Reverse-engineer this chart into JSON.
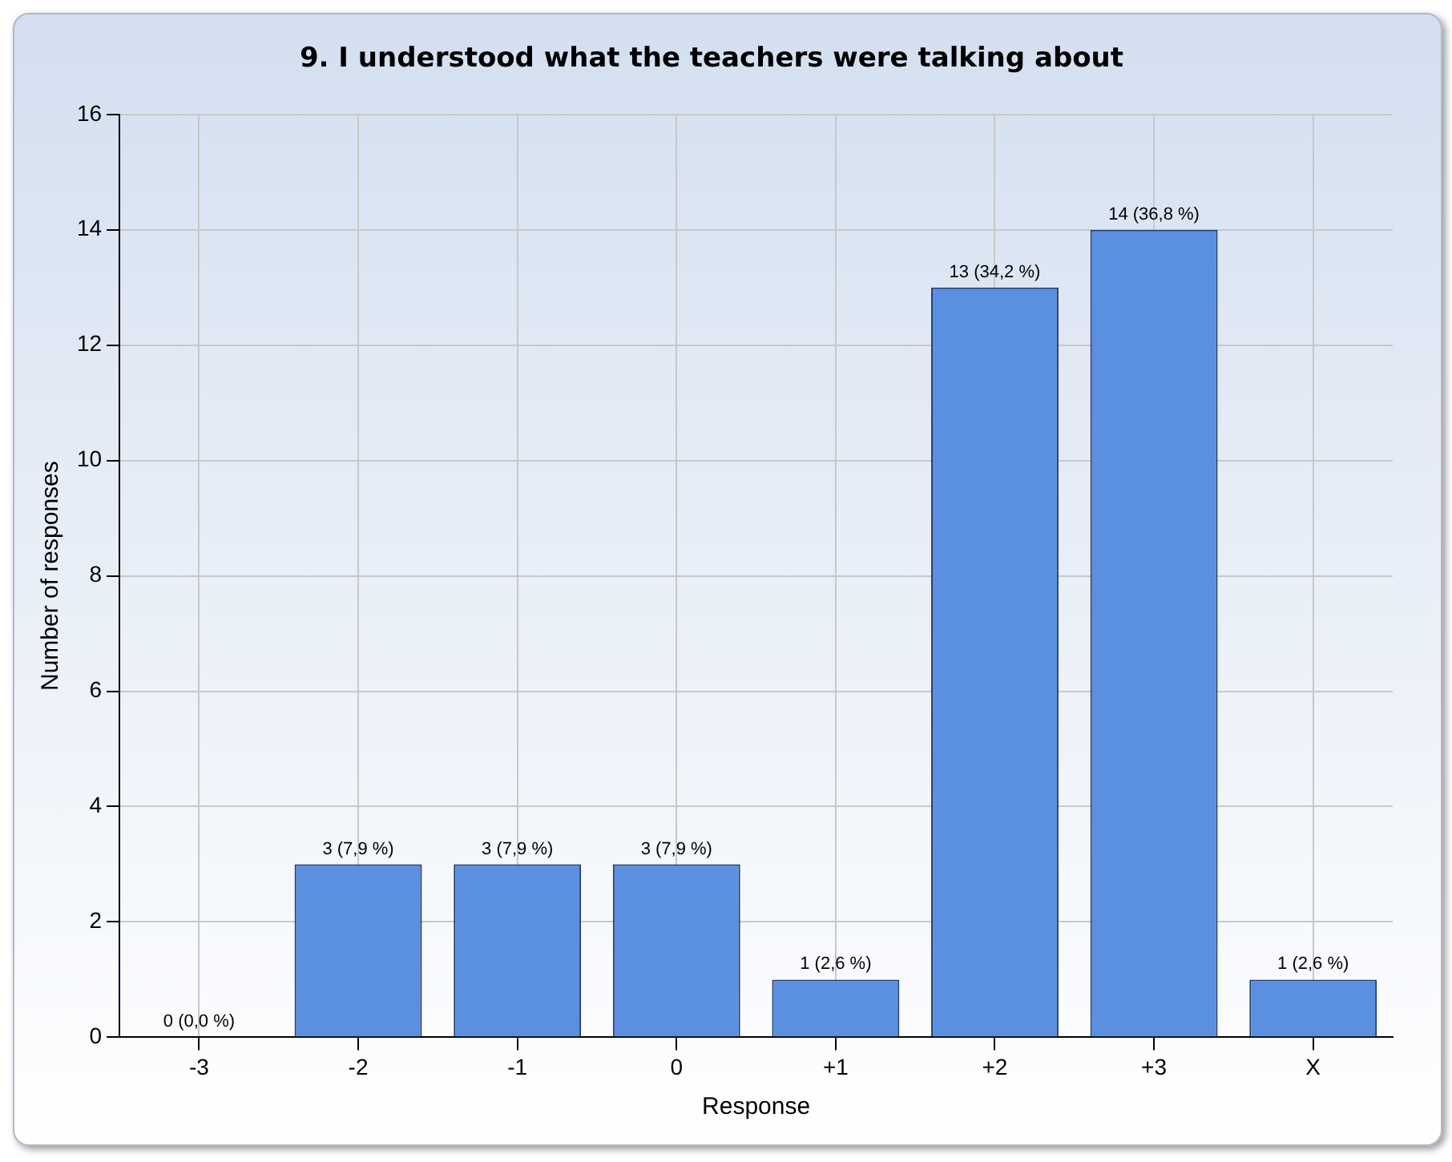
{
  "chart_data": {
    "type": "bar",
    "title": "9. I understood what the teachers were talking about",
    "xlabel": "Response",
    "ylabel": "Number of responses",
    "categories": [
      "-3",
      "-2",
      "-1",
      "0",
      "+1",
      "+2",
      "+3",
      "X"
    ],
    "values": [
      0,
      3,
      3,
      3,
      1,
      13,
      14,
      1
    ],
    "value_labels": [
      "0 (0,0 %)",
      "3 (7,9 %)",
      "3 (7,9 %)",
      "3 (7,9 %)",
      "1 (2,6 %)",
      "13 (34,2 %)",
      "14 (36,8 %)",
      "1 (2,6 %)"
    ],
    "color": "#5b8fe0",
    "ylim": [
      0,
      16
    ],
    "yticks": [
      0,
      2,
      4,
      6,
      8,
      10,
      12,
      14,
      16
    ],
    "grid": true,
    "legend": false
  }
}
